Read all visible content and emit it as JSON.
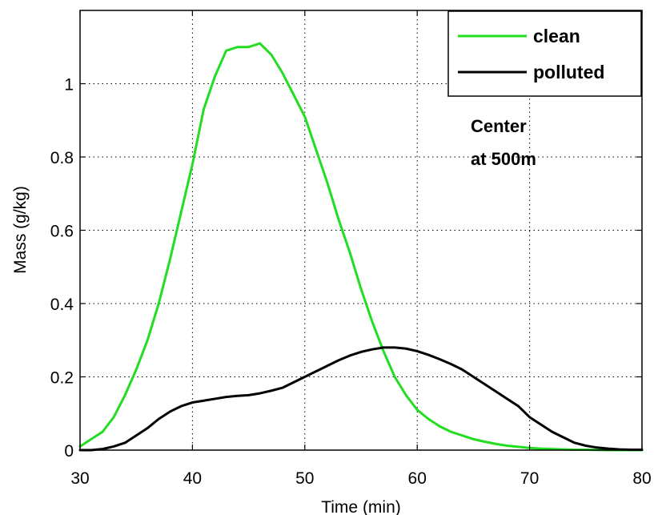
{
  "chart_data": {
    "type": "line",
    "title": "",
    "xlabel": "Time (min)",
    "ylabel": "Mass (g/kg)",
    "xlim": [
      30,
      80
    ],
    "ylim": [
      0,
      1.2
    ],
    "xticks": [
      30,
      40,
      50,
      60,
      70,
      80
    ],
    "xtick_labels": [
      "30",
      "40",
      "50",
      "60",
      "70",
      "80"
    ],
    "yticks": [
      0,
      0.2,
      0.4,
      0.6,
      0.8,
      1
    ],
    "ytick_labels": [
      "0",
      "0.2",
      "0.4",
      "0.6",
      "0.8",
      "1"
    ],
    "grid": true,
    "legend_position": "top-right",
    "annotation": [
      "Center",
      "at 500m"
    ],
    "series": [
      {
        "name": "clean",
        "color": "#22dd22",
        "x": [
          30,
          31,
          32,
          33,
          34,
          35,
          36,
          37,
          38,
          39,
          40,
          41,
          42,
          43,
          44,
          45,
          46,
          47,
          48,
          49,
          50,
          51,
          52,
          53,
          54,
          55,
          56,
          57,
          58,
          59,
          60,
          61,
          62,
          63,
          64,
          65,
          66,
          67,
          68,
          69,
          70,
          71,
          72,
          73,
          74,
          75,
          76,
          77,
          78,
          79,
          80
        ],
        "y": [
          0.01,
          0.03,
          0.05,
          0.09,
          0.15,
          0.22,
          0.3,
          0.4,
          0.52,
          0.65,
          0.78,
          0.93,
          1.02,
          1.09,
          1.1,
          1.1,
          1.11,
          1.08,
          1.03,
          0.97,
          0.91,
          0.82,
          0.73,
          0.63,
          0.54,
          0.44,
          0.35,
          0.27,
          0.2,
          0.15,
          0.11,
          0.085,
          0.065,
          0.05,
          0.04,
          0.03,
          0.023,
          0.017,
          0.012,
          0.009,
          0.006,
          0.004,
          0.003,
          0.002,
          0.001,
          0.001,
          0.0005,
          0,
          0,
          0,
          0
        ]
      },
      {
        "name": "polluted",
        "color": "#000000",
        "x": [
          30,
          31,
          32,
          33,
          34,
          35,
          36,
          37,
          38,
          39,
          40,
          41,
          42,
          43,
          44,
          45,
          46,
          47,
          48,
          49,
          50,
          51,
          52,
          53,
          54,
          55,
          56,
          57,
          58,
          59,
          60,
          61,
          62,
          63,
          64,
          65,
          66,
          67,
          68,
          69,
          70,
          71,
          72,
          73,
          74,
          75,
          76,
          77,
          78,
          79,
          80
        ],
        "y": [
          0,
          0,
          0.003,
          0.01,
          0.02,
          0.04,
          0.06,
          0.085,
          0.105,
          0.12,
          0.13,
          0.135,
          0.14,
          0.145,
          0.148,
          0.15,
          0.155,
          0.162,
          0.17,
          0.185,
          0.2,
          0.215,
          0.23,
          0.245,
          0.258,
          0.268,
          0.275,
          0.28,
          0.28,
          0.277,
          0.27,
          0.26,
          0.248,
          0.235,
          0.22,
          0.2,
          0.18,
          0.16,
          0.14,
          0.12,
          0.09,
          0.07,
          0.05,
          0.035,
          0.02,
          0.012,
          0.007,
          0.004,
          0.002,
          0.001,
          0.001
        ]
      }
    ]
  }
}
